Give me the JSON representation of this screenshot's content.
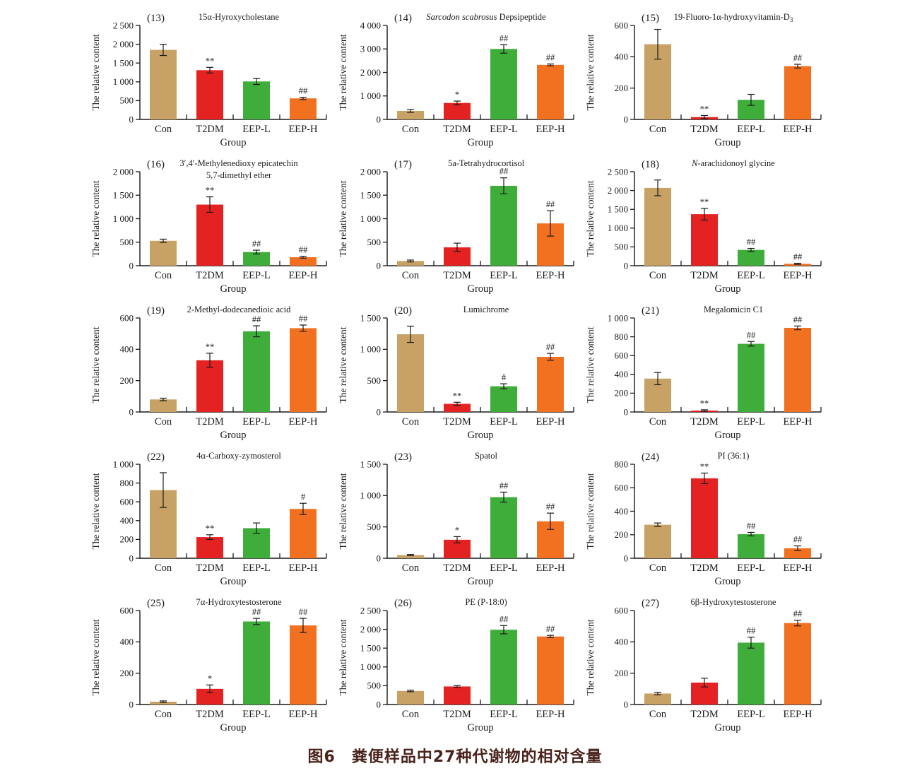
{
  "figure": {
    "ylabel": "The relative content",
    "xlabel": "Group",
    "categories": [
      "Con",
      "T2DM",
      "EEP-L",
      "EEP-H"
    ],
    "bar_colors": [
      "#C8A165",
      "#E42221",
      "#3FAD3A",
      "#F17121"
    ],
    "axis_color": "#1a1a1a",
    "caption": "图6　粪便样品中27种代谢物的相对含量",
    "caption_color": "#4A231B"
  },
  "chart_data": [
    {
      "type": "bar",
      "panel": "(13)",
      "title_lines": [
        [
          {
            "t": "15α-Hyroxycholestane"
          }
        ]
      ],
      "ylim": [
        0,
        2500
      ],
      "ytick_step": 500,
      "categories": [
        "Con",
        "T2DM",
        "EEP-L",
        "EEP-H"
      ],
      "values": [
        1850,
        1310,
        1010,
        560
      ],
      "errors": [
        150,
        75,
        80,
        30
      ],
      "sig": [
        "",
        "**",
        "",
        "##"
      ]
    },
    {
      "type": "bar",
      "panel": "(14)",
      "title_lines": [
        [
          {
            "t": "Sarcodon scabrosus",
            "i": true
          },
          {
            "t": " Depsipeptide"
          }
        ]
      ],
      "ylim": [
        0,
        4000
      ],
      "ytick_step": 1000,
      "categories": [
        "Con",
        "T2DM",
        "EEP-L",
        "EEP-H"
      ],
      "values": [
        360,
        700,
        3000,
        2320
      ],
      "errors": [
        60,
        80,
        180,
        40
      ],
      "sig": [
        "",
        "*",
        "##",
        "##"
      ]
    },
    {
      "type": "bar",
      "panel": "(15)",
      "title_lines": [
        [
          {
            "t": "19-Fluoro-1α-hydroxyvitamin-D"
          },
          {
            "t": "3",
            "sub": true
          }
        ]
      ],
      "ylim": [
        0,
        600
      ],
      "ytick_step": 200,
      "categories": [
        "Con",
        "T2DM",
        "EEP-L",
        "EEP-H"
      ],
      "values": [
        480,
        15,
        125,
        340
      ],
      "errors": [
        95,
        10,
        35,
        12
      ],
      "sig": [
        "",
        "**",
        "",
        "##"
      ]
    },
    {
      "type": "bar",
      "panel": "(16)",
      "title_lines": [
        [
          {
            "t": "3′,4′-Methylenedioxy epicatechin"
          }
        ],
        [
          {
            "t": "5,7-dimethyl ether"
          }
        ]
      ],
      "ylim": [
        0,
        2000
      ],
      "ytick_step": 500,
      "categories": [
        "Con",
        "T2DM",
        "EEP-L",
        "EEP-H"
      ],
      "values": [
        530,
        1300,
        290,
        180
      ],
      "errors": [
        35,
        165,
        40,
        20
      ],
      "sig": [
        "",
        "**",
        "##",
        "##"
      ]
    },
    {
      "type": "bar",
      "panel": "(17)",
      "title_lines": [
        [
          {
            "t": "5a-Tetrahydrocortisol"
          }
        ]
      ],
      "ylim": [
        0,
        2000
      ],
      "ytick_step": 500,
      "categories": [
        "Con",
        "T2DM",
        "EEP-L",
        "EEP-H"
      ],
      "values": [
        100,
        390,
        1700,
        900
      ],
      "errors": [
        20,
        90,
        170,
        270
      ],
      "sig": [
        "",
        "",
        "##",
        "##"
      ]
    },
    {
      "type": "bar",
      "panel": "(18)",
      "title_lines": [
        [
          {
            "t": "N",
            "i": true
          },
          {
            "t": "-arachidonoyl glycine"
          }
        ]
      ],
      "ylim": [
        0,
        2500
      ],
      "ytick_step": 500,
      "categories": [
        "Con",
        "T2DM",
        "EEP-L",
        "EEP-H"
      ],
      "values": [
        2070,
        1370,
        420,
        50
      ],
      "errors": [
        210,
        155,
        40,
        15
      ],
      "sig": [
        "",
        "**",
        "##",
        "##"
      ]
    },
    {
      "type": "bar",
      "panel": "(19)",
      "title_lines": [
        [
          {
            "t": "2-Methyl-dodecanedioic acid"
          }
        ]
      ],
      "ylim": [
        0,
        600
      ],
      "ytick_step": 200,
      "categories": [
        "Con",
        "T2DM",
        "EEP-L",
        "EEP-H"
      ],
      "values": [
        80,
        330,
        515,
        535
      ],
      "errors": [
        8,
        45,
        35,
        20
      ],
      "sig": [
        "",
        "**",
        "##",
        "##"
      ]
    },
    {
      "type": "bar",
      "panel": "(20)",
      "title_lines": [
        [
          {
            "t": "Lumichrome"
          }
        ]
      ],
      "ylim": [
        0,
        1500
      ],
      "ytick_step": 500,
      "categories": [
        "Con",
        "T2DM",
        "EEP-L",
        "EEP-H"
      ],
      "values": [
        1240,
        130,
        410,
        880
      ],
      "errors": [
        130,
        25,
        40,
        55
      ],
      "sig": [
        "",
        "**",
        "#",
        "##"
      ]
    },
    {
      "type": "bar",
      "panel": "(21)",
      "title_lines": [
        [
          {
            "t": "Megalomicin C1"
          }
        ]
      ],
      "ylim": [
        0,
        1000
      ],
      "ytick_step": 200,
      "categories": [
        "Con",
        "T2DM",
        "EEP-L",
        "EEP-H"
      ],
      "values": [
        355,
        15,
        725,
        895
      ],
      "errors": [
        65,
        8,
        25,
        20
      ],
      "sig": [
        "",
        "**",
        "##",
        "##"
      ]
    },
    {
      "type": "bar",
      "panel": "(22)",
      "title_lines": [
        [
          {
            "t": "4α-Carboxy-zymosterol"
          }
        ]
      ],
      "ylim": [
        0,
        1000
      ],
      "ytick_step": 200,
      "categories": [
        "Con",
        "T2DM",
        "EEP-L",
        "EEP-H"
      ],
      "values": [
        725,
        225,
        320,
        525
      ],
      "errors": [
        185,
        25,
        55,
        60
      ],
      "sig": [
        "",
        "**",
        "",
        "#"
      ]
    },
    {
      "type": "bar",
      "panel": "(23)",
      "title_lines": [
        [
          {
            "t": "Spatol"
          }
        ]
      ],
      "ylim": [
        0,
        1500
      ],
      "ytick_step": 500,
      "categories": [
        "Con",
        "T2DM",
        "EEP-L",
        "EEP-H"
      ],
      "values": [
        50,
        295,
        975,
        590
      ],
      "errors": [
        10,
        50,
        80,
        130
      ],
      "sig": [
        "",
        "*",
        "##",
        "##"
      ]
    },
    {
      "type": "bar",
      "panel": "(24)",
      "title_lines": [
        [
          {
            "t": "PI (36:1)"
          }
        ]
      ],
      "ylim": [
        0,
        800
      ],
      "ytick_step": 200,
      "categories": [
        "Con",
        "T2DM",
        "EEP-L",
        "EEP-H"
      ],
      "values": [
        285,
        680,
        205,
        85
      ],
      "errors": [
        15,
        45,
        15,
        20
      ],
      "sig": [
        "",
        "**",
        "##",
        "##"
      ]
    },
    {
      "type": "bar",
      "panel": "(25)",
      "title_lines": [
        [
          {
            "t": "7α-Hydroxytestosterone"
          }
        ]
      ],
      "ylim": [
        0,
        600
      ],
      "ytick_step": 200,
      "categories": [
        "Con",
        "T2DM",
        "EEP-L",
        "EEP-H"
      ],
      "values": [
        18,
        100,
        530,
        505
      ],
      "errors": [
        5,
        25,
        20,
        45
      ],
      "sig": [
        "",
        "*",
        "##",
        "##"
      ]
    },
    {
      "type": "bar",
      "panel": "(26)",
      "title_lines": [
        [
          {
            "t": "PE (P-18:0)"
          }
        ]
      ],
      "ylim": [
        0,
        2500
      ],
      "ytick_step": 500,
      "categories": [
        "Con",
        "T2DM",
        "EEP-L",
        "EEP-H"
      ],
      "values": [
        360,
        480,
        1990,
        1810
      ],
      "errors": [
        20,
        25,
        110,
        30
      ],
      "sig": [
        "",
        "",
        "##",
        "##"
      ]
    },
    {
      "type": "bar",
      "panel": "(27)",
      "title_lines": [
        [
          {
            "t": "6β-Hydroxytestosterone"
          }
        ]
      ],
      "ylim": [
        0,
        600
      ],
      "ytick_step": 200,
      "categories": [
        "Con",
        "T2DM",
        "EEP-L",
        "EEP-H"
      ],
      "values": [
        70,
        140,
        395,
        520
      ],
      "errors": [
        8,
        28,
        35,
        18
      ],
      "sig": [
        "",
        "",
        "##",
        "##"
      ]
    }
  ]
}
